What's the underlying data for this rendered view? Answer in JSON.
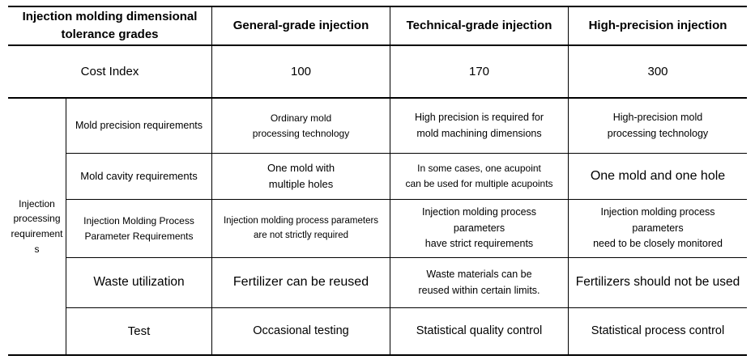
{
  "table": {
    "header": {
      "corner": "Injection molding dimensional\ntolerance grades",
      "columns": [
        "General-grade injection",
        "Technical-grade injection",
        "High-precision injection"
      ]
    },
    "cost_index_row": {
      "label": "Cost Index",
      "values": [
        "100",
        "170",
        "300"
      ]
    },
    "section": {
      "label": "Injection processing requirements",
      "rows": [
        {
          "label": "Mold precision requirements",
          "values": [
            "Ordinary mold\nprocessing technology",
            "High precision is required for\nmold machining dimensions",
            "High-precision mold\nprocessing technology"
          ]
        },
        {
          "label": "Mold cavity requirements",
          "values": [
            "One mold with\nmultiple holes",
            "In some cases, one acupoint\ncan be used for multiple acupoints",
            "One mold and one hole"
          ]
        },
        {
          "label": "Injection Molding Process\nParameter Requirements",
          "values": [
            "Injection molding process parameters\nare not strictly required",
            "Injection molding process\nparameters\nhave strict requirements",
            "Injection molding process\nparameters\nneed to be closely monitored"
          ]
        },
        {
          "label": "Waste utilization",
          "values": [
            "Fertilizer can be reused",
            "Waste materials can be\nreused within certain limits.",
            "Fertilizers should not be used"
          ]
        },
        {
          "label": "Test",
          "values": [
            "Occasional testing",
            "Statistical quality control",
            "Statistical process control"
          ]
        }
      ]
    }
  }
}
